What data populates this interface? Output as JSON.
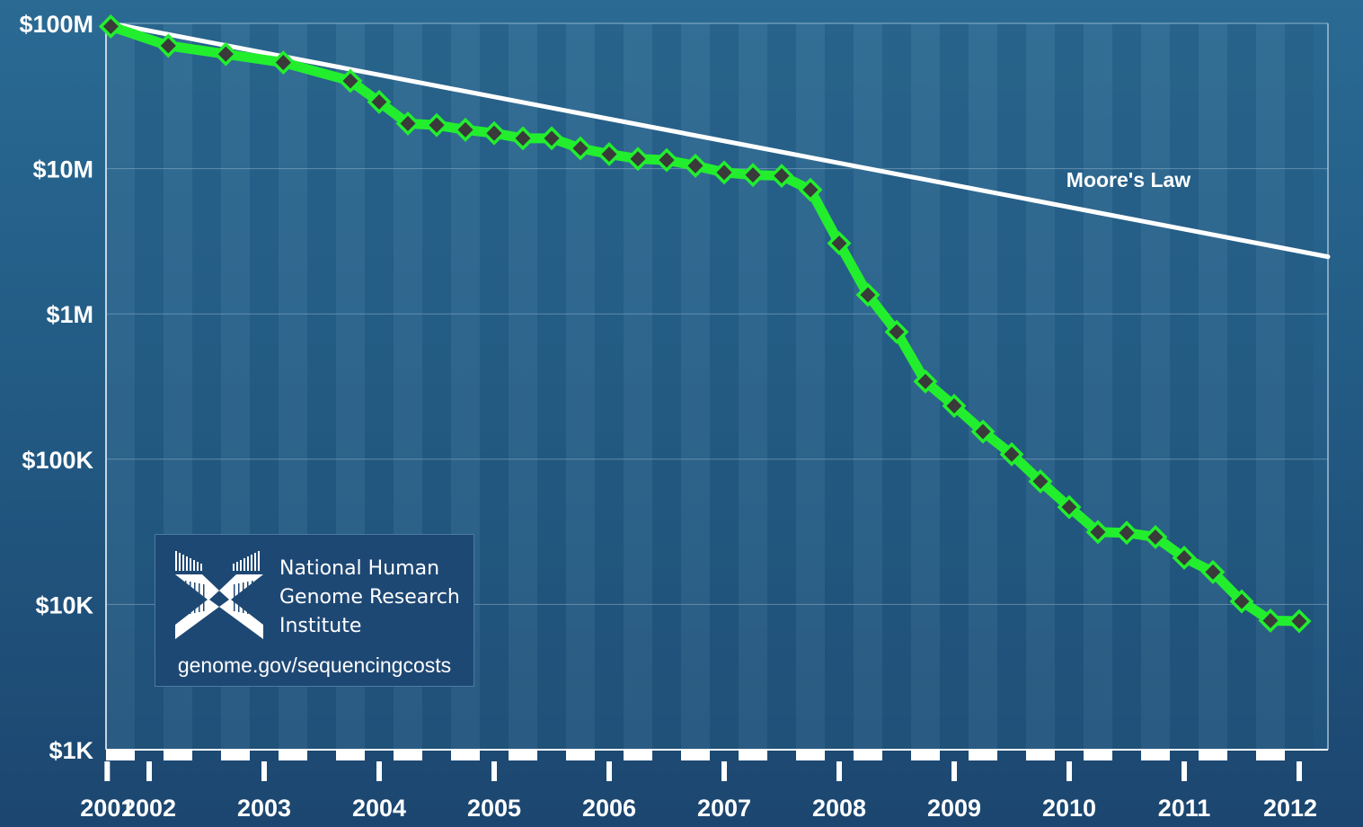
{
  "chart_data": {
    "type": "line",
    "y_scale": "log",
    "ylim": [
      1000,
      100000000
    ],
    "y_ticks": [
      1000,
      10000,
      100000,
      1000000,
      10000000,
      100000000
    ],
    "y_tick_labels": [
      "$1K",
      "$10K",
      "$100K",
      "$1M",
      "$10M",
      "$100M"
    ],
    "x_tick_labels": [
      "2001",
      "2002",
      "2003",
      "2004",
      "2005",
      "2006",
      "2007",
      "2008",
      "2009",
      "2010",
      "2011",
      "2012"
    ],
    "grid": "horizontal",
    "series": [
      {
        "color": "#22ee2e",
        "marker": "diamond",
        "points": [
          [
            "Sep 2001",
            95263072
          ],
          [
            "Mar 2002",
            70175437
          ],
          [
            "Sep 2002",
            61448422
          ],
          [
            "Mar 2003",
            53751684
          ],
          [
            "Oct 2003",
            40157554
          ],
          [
            "Jan 2004",
            28780376
          ],
          [
            "Apr 2004",
            20442576
          ],
          [
            "Jul 2004",
            19934614
          ],
          [
            "Oct 2004",
            18519312
          ],
          [
            "Jan 2005",
            17534970
          ],
          [
            "Apr 2005",
            16159699
          ],
          [
            "Jul 2005",
            16180224
          ],
          [
            "Oct 2005",
            13801124
          ],
          [
            "Jan 2006",
            12585659
          ],
          [
            "Apr 2006",
            11672341
          ],
          [
            "Jul 2006",
            11454400
          ],
          [
            "Oct 2006",
            10474556
          ],
          [
            "Jan 2007",
            9408739
          ],
          [
            "Apr 2007",
            9047003
          ],
          [
            "Jul 2007",
            8927342
          ],
          [
            "Oct 2007",
            7147571
          ],
          [
            "Jan 2008",
            3063820
          ],
          [
            "Apr 2008",
            1352982
          ],
          [
            "Jul 2008",
            752080
          ],
          [
            "Oct 2008",
            342502
          ],
          [
            "Jan 2009",
            232735
          ],
          [
            "Apr 2009",
            154714
          ],
          [
            "Jul 2009",
            108065
          ],
          [
            "Oct 2009",
            70333
          ],
          [
            "Jan 2010",
            46774
          ],
          [
            "Apr 2010",
            31512
          ],
          [
            "Jul 2010",
            31125
          ],
          [
            "Oct 2010",
            29092
          ],
          [
            "Jan 2011",
            20963
          ],
          [
            "Apr 2011",
            16712
          ],
          [
            "Jul 2011",
            10497
          ],
          [
            "Oct 2011",
            7743
          ],
          [
            "Jan 2012",
            7666
          ]
        ]
      },
      {
        "name": "Moore's Law",
        "color": "#ffffff",
        "marker": "none",
        "points": [
          [
            "Sep 2001",
            100000000
          ],
          [
            "Jan 2012",
            2700000
          ]
        ]
      }
    ],
    "annotations": [
      "Moore's Law"
    ]
  },
  "logo": {
    "lines": [
      "National Human",
      "Genome Research",
      "Institute"
    ],
    "url": "genome.gov/sequencingcosts"
  }
}
